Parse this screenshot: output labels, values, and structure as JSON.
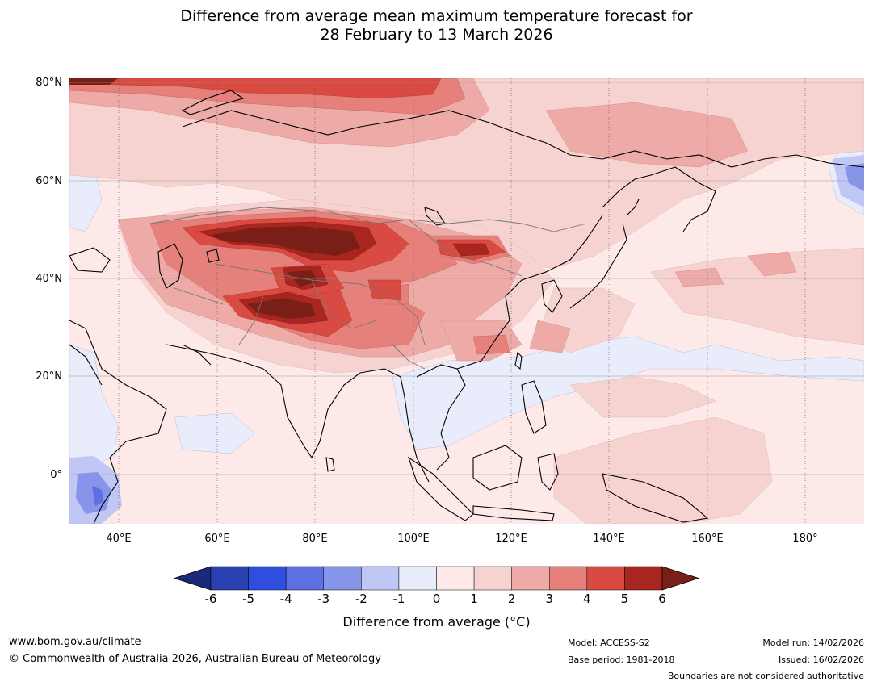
{
  "title": {
    "line1": "Difference from average mean maximum temperature forecast for",
    "line2": "28 February to 13 March 2026"
  },
  "map": {
    "lat_labels": [
      "80°N",
      "60°N",
      "40°N",
      "20°N",
      "0°"
    ],
    "lon_labels": [
      "40°E",
      "60°E",
      "80°E",
      "100°E",
      "120°E",
      "140°E",
      "160°E",
      "180°"
    ]
  },
  "colorbar": {
    "ticks": [
      "-6",
      "-5",
      "-4",
      "-3",
      "-2",
      "-1",
      "0",
      "1",
      "2",
      "3",
      "4",
      "5",
      "6"
    ],
    "colors": [
      "#1a2a7a",
      "#2a3fb0",
      "#2f4ee0",
      "#5c70e3",
      "#8694ea",
      "#c0c7f4",
      "#e8ecfb",
      "#fdeae8",
      "#f6d3d0",
      "#edaaa6",
      "#e5807b",
      "#d94a42",
      "#a8261f",
      "#7a1f18"
    ],
    "label": "Difference from average (°C)"
  },
  "footer": {
    "url": "www.bom.gov.au/climate",
    "copyright": "© Commonwealth of Australia 2026, Australian Bureau of Meteorology",
    "model": "Model: ACCESS-S2",
    "base_period": "Base period: 1981-2018",
    "model_run": "Model run: 14/02/2026",
    "issued": "Issued: 16/02/2026",
    "disclaimer": "Boundaries are not considered authoritative"
  }
}
